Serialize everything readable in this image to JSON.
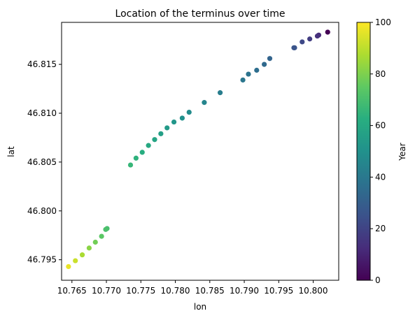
{
  "chart_data": {
    "type": "scatter",
    "title": "Location of the terminus over time",
    "xlabel": "lon",
    "ylabel": "lat",
    "xlim": [
      10.7635,
      10.8037
    ],
    "ylim": [
      46.7929,
      46.8193
    ],
    "xticks": [
      10.765,
      10.77,
      10.775,
      10.78,
      10.785,
      10.79,
      10.795,
      10.8
    ],
    "xtick_labels": [
      "10.765",
      "10.770",
      "10.775",
      "10.780",
      "10.785",
      "10.790",
      "10.795",
      "10.800"
    ],
    "yticks": [
      46.795,
      46.8,
      46.805,
      46.81,
      46.815
    ],
    "ytick_labels": [
      "46.795",
      "46.800",
      "46.805",
      "46.810",
      "46.815"
    ],
    "grid": false,
    "colorbar": {
      "label": "Year",
      "colormap": "viridis",
      "range": [
        0,
        100
      ],
      "ticks": [
        0,
        20,
        40,
        60,
        80,
        100
      ],
      "tick_labels": [
        "0",
        "20",
        "40",
        "60",
        "80",
        "100"
      ]
    },
    "points": [
      {
        "x": 10.8021,
        "y": 46.8183,
        "year": 0
      },
      {
        "x": 10.8008,
        "y": 46.818,
        "year": 12
      },
      {
        "x": 10.8006,
        "y": 46.8179,
        "year": 14
      },
      {
        "x": 10.7995,
        "y": 46.8176,
        "year": 18
      },
      {
        "x": 10.7984,
        "y": 46.8173,
        "year": 22
      },
      {
        "x": 10.7973,
        "y": 46.8167,
        "year": 25
      },
      {
        "x": 10.7972,
        "y": 46.8167,
        "year": 26
      },
      {
        "x": 10.7937,
        "y": 46.8156,
        "year": 32
      },
      {
        "x": 10.7929,
        "y": 46.815,
        "year": 34
      },
      {
        "x": 10.7918,
        "y": 46.8144,
        "year": 36
      },
      {
        "x": 10.7906,
        "y": 46.814,
        "year": 38
      },
      {
        "x": 10.7898,
        "y": 46.8134,
        "year": 39
      },
      {
        "x": 10.7865,
        "y": 46.8121,
        "year": 42
      },
      {
        "x": 10.7842,
        "y": 46.8111,
        "year": 45
      },
      {
        "x": 10.782,
        "y": 46.8101,
        "year": 48
      },
      {
        "x": 10.781,
        "y": 46.8095,
        "year": 50
      },
      {
        "x": 10.7798,
        "y": 46.8091,
        "year": 52
      },
      {
        "x": 10.7788,
        "y": 46.8085,
        "year": 54
      },
      {
        "x": 10.7779,
        "y": 46.8079,
        "year": 56
      },
      {
        "x": 10.777,
        "y": 46.8073,
        "year": 58
      },
      {
        "x": 10.7761,
        "y": 46.8067,
        "year": 60
      },
      {
        "x": 10.7752,
        "y": 46.806,
        "year": 62
      },
      {
        "x": 10.7743,
        "y": 46.8054,
        "year": 64
      },
      {
        "x": 10.7735,
        "y": 46.8047,
        "year": 66
      },
      {
        "x": 10.7701,
        "y": 46.7982,
        "year": 70
      },
      {
        "x": 10.7699,
        "y": 46.7981,
        "year": 71
      },
      {
        "x": 10.7693,
        "y": 46.7974,
        "year": 74
      },
      {
        "x": 10.7684,
        "y": 46.7968,
        "year": 78
      },
      {
        "x": 10.7675,
        "y": 46.7962,
        "year": 82
      },
      {
        "x": 10.7665,
        "y": 46.7955,
        "year": 87
      },
      {
        "x": 10.7655,
        "y": 46.7949,
        "year": 92
      },
      {
        "x": 10.7645,
        "y": 46.7943,
        "year": 97
      }
    ]
  }
}
